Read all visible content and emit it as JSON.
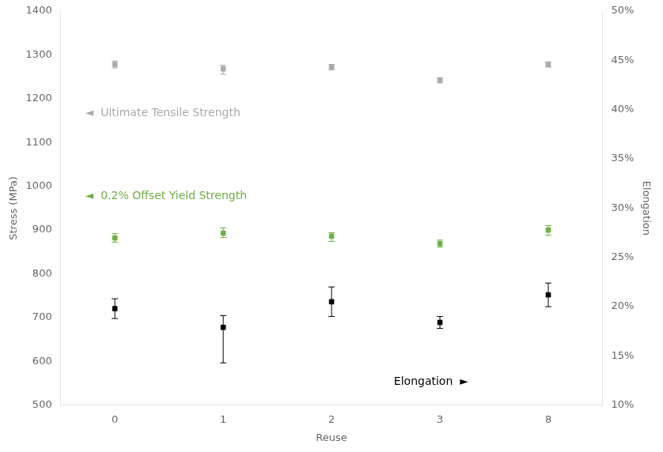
{
  "chart_data": {
    "type": "scatter",
    "categories": [
      "0",
      "1",
      "2",
      "3",
      "8"
    ],
    "xlabel": "Reuse",
    "ylabel": "Stress (MPa)",
    "y2label": "Elongation",
    "ylim": [
      500,
      1400
    ],
    "yticks": [
      500,
      600,
      700,
      800,
      900,
      1000,
      1100,
      1200,
      1300,
      1400
    ],
    "y2lim": [
      0.1,
      0.5
    ],
    "y2ticks": [
      {
        "value": 0.1,
        "label": "10%"
      },
      {
        "value": 0.15,
        "label": "15%"
      },
      {
        "value": 0.2,
        "label": "20%"
      },
      {
        "value": 0.25,
        "label": "25%"
      },
      {
        "value": 0.3,
        "label": "30%"
      },
      {
        "value": 0.35,
        "label": "35%"
      },
      {
        "value": 0.4,
        "label": "40%"
      },
      {
        "value": 0.45,
        "label": "45%"
      },
      {
        "value": 0.5,
        "label": "50%"
      }
    ],
    "grid": false,
    "marker": "square",
    "series": [
      {
        "name": "Ultimate Tensile Strength",
        "color": "#aaaaaa",
        "values": [
          1278,
          1268,
          1272,
          1242,
          1278
        ],
        "yerr_low": [
          8,
          12,
          6,
          6,
          6
        ],
        "yerr_high": [
          8,
          8,
          6,
          6,
          6
        ]
      },
      {
        "name": "0.2% Offset Yield Strength",
        "color": "#70ad47",
        "values": [
          882,
          893,
          886,
          869,
          900
        ],
        "yerr_low": [
          10,
          10,
          12,
          8,
          12
        ],
        "yerr_high": [
          10,
          12,
          8,
          8,
          10
        ]
      },
      {
        "name": "Elongation",
        "color": "#000000",
        "axis": "y2",
        "values": [
          0.198,
          0.179,
          0.205,
          0.184,
          0.212
        ],
        "yerr_low": [
          0.01,
          0.036,
          0.015,
          0.006,
          0.012
        ],
        "yerr_high": [
          0.01,
          0.012,
          0.015,
          0.006,
          0.012
        ]
      }
    ],
    "annotations": [
      {
        "text": "◄  Ultimate Tensile Strength",
        "color": "#aaaaaa"
      },
      {
        "text": "◄  0.2% Offset Yield Strength",
        "color": "#70ad47"
      },
      {
        "text": "Elongation  ►",
        "color": "#000000"
      }
    ]
  }
}
